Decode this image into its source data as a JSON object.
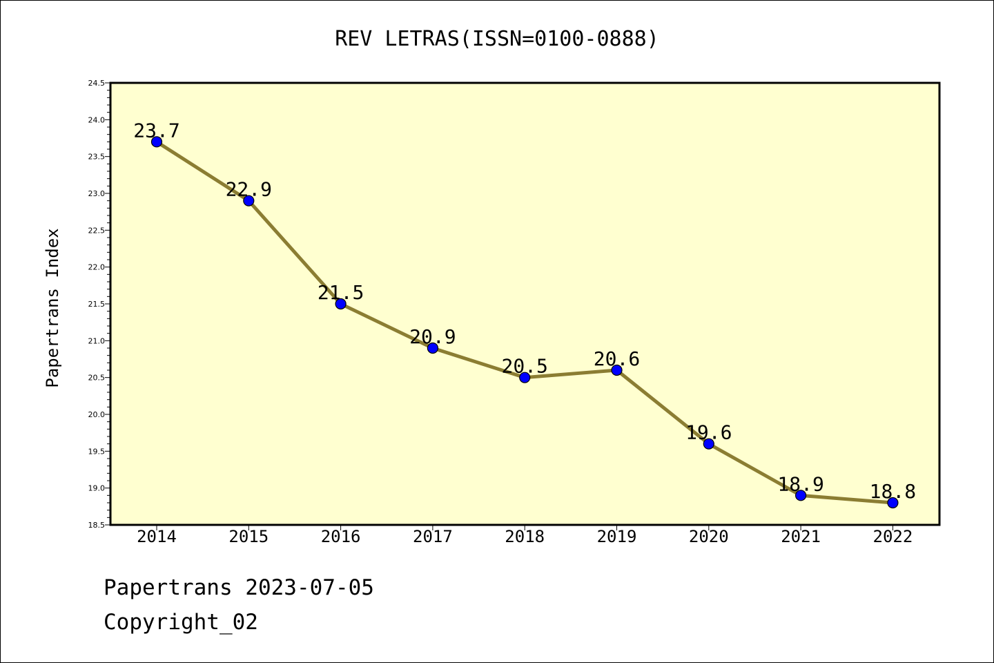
{
  "chart_data": {
    "type": "line",
    "title": "REV LETRAS(ISSN=0100-0888)",
    "xlabel": "",
    "ylabel": "Papertrans Index",
    "categories": [
      "2014",
      "2015",
      "2016",
      "2017",
      "2018",
      "2019",
      "2020",
      "2021",
      "2022"
    ],
    "values": [
      23.7,
      22.9,
      21.5,
      20.9,
      20.5,
      20.6,
      19.6,
      18.9,
      18.8
    ],
    "data_labels": [
      "23.7",
      "22.9",
      "21.5",
      "20.9",
      "20.5",
      "20.6",
      "19.6",
      "18.9",
      "18.8"
    ],
    "ylim": [
      18.5,
      24.5
    ],
    "yticks": [
      "18.5",
      "19.0",
      "19.5",
      "20.0",
      "20.5",
      "21.0",
      "21.5",
      "22.0",
      "22.5",
      "23.0",
      "23.5",
      "24.0",
      "24.5"
    ],
    "grid": false,
    "colors": {
      "plot_background": "#ffffd0",
      "line": "#8b7d32",
      "marker": "#0000ff",
      "marker_edge": "#000000"
    }
  },
  "footer": {
    "line1": "Papertrans 2023-07-05",
    "line2": "Copyright_02"
  }
}
